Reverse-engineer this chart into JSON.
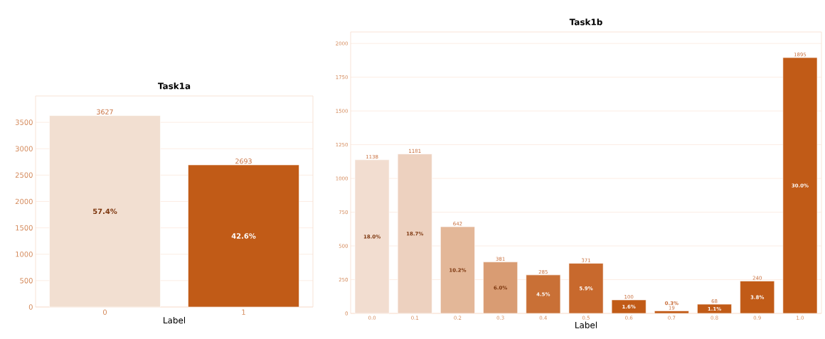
{
  "chart_data": [
    {
      "type": "bar",
      "title": "Task1a",
      "xlabel": "Label",
      "categories": [
        "0",
        "1"
      ],
      "values": [
        3627,
        2693
      ],
      "colors": [
        "#f2dfd1",
        "#c15b17"
      ],
      "value_labels": [
        "3627",
        "2693"
      ],
      "ylim": [
        0,
        4000
      ],
      "yticks": [
        0,
        500,
        1000,
        1500,
        2000,
        2500,
        3000,
        3500
      ],
      "grid": "y",
      "annotations": [
        "57.4%",
        "42.6%"
      ]
    },
    {
      "type": "bar",
      "title": "Task1b",
      "xlabel": "Label",
      "categories": [
        "0.0",
        "0.1",
        "0.2",
        "0.3",
        "0.4",
        "0.5",
        "0.6",
        "0.7",
        "0.8",
        "0.9",
        "1.0"
      ],
      "values": [
        1138,
        1181,
        642,
        381,
        285,
        371,
        100,
        19,
        68,
        240,
        1895
      ],
      "colors": [
        "#f2ddd0",
        "#edd1bf",
        "#e3b798",
        "#d99c73",
        "#c97036",
        "#c8692d",
        "#c15b17",
        "#c15b17",
        "#c15b17",
        "#c15b17",
        "#c15b17"
      ],
      "value_labels": [
        "1138",
        "1181",
        "642",
        "381",
        "285",
        "371",
        "100",
        "19",
        "68",
        "240",
        "1895"
      ],
      "ylim": [
        0,
        2085
      ],
      "yticks": [
        0,
        250,
        500,
        750,
        1000,
        1250,
        1500,
        1750,
        2000
      ],
      "grid": "y",
      "annotations": [
        "18.0%",
        "18.7%",
        "10.2%",
        "6.0%",
        "4.5%",
        "5.9%",
        "1.6%",
        "0.3%",
        "1.1%",
        "3.8%",
        "30.0%"
      ]
    }
  ]
}
